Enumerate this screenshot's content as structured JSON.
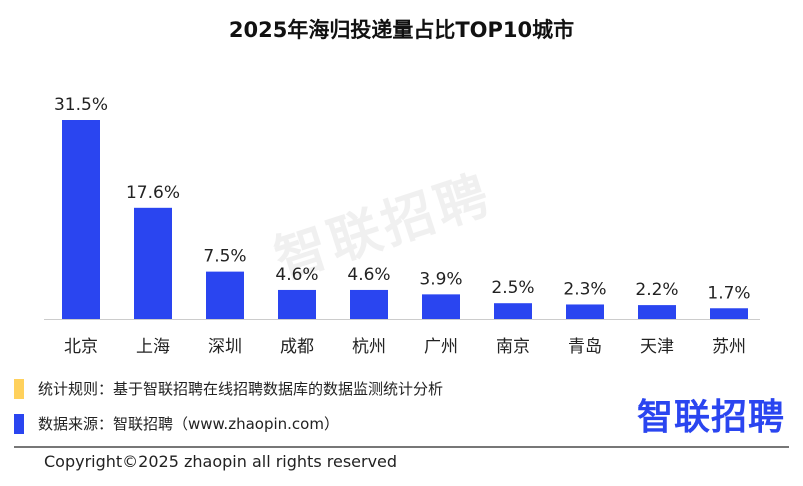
{
  "chart_data": {
    "type": "bar",
    "title": "2025年海归投递量占比TOP10城市",
    "categories": [
      "北京",
      "上海",
      "深圳",
      "成都",
      "杭州",
      "广州",
      "南京",
      "青岛",
      "天津",
      "苏州"
    ],
    "values": [
      31.5,
      17.6,
      7.5,
      4.6,
      4.6,
      3.9,
      2.5,
      2.3,
      2.2,
      1.7
    ],
    "data_labels": [
      "31.5%",
      "17.6%",
      "7.5%",
      "4.6%",
      "4.6%",
      "3.9%",
      "2.5%",
      "2.3%",
      "2.2%",
      "1.7%"
    ],
    "unit": "%",
    "ylim": [
      0,
      31.5
    ],
    "grid": false,
    "bar_color": "#2a45f0"
  },
  "watermark": "智联招聘",
  "legend": [
    {
      "text": "统计规则：基于智联招聘在线招聘数据库的数据监测统计分析",
      "color": "#ffd15c"
    },
    {
      "text": "数据来源：智联招聘（www.zhaopin.com）",
      "color": "#2a45f0"
    }
  ],
  "logo": "智联招聘",
  "copyright": "Copyright©2025 zhaopin all rights reserved"
}
